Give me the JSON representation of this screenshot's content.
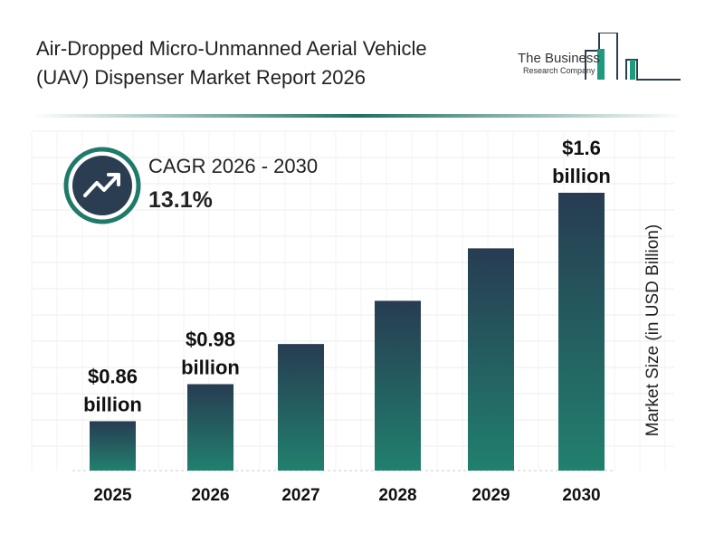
{
  "header": {
    "title_line1": "Air-Dropped Micro-Unmanned Aerial Vehicle",
    "title_line2": "(UAV) Dispenser Market Report 2026"
  },
  "logo": {
    "line1": "The Business",
    "line2": "Research Company"
  },
  "cagr": {
    "label": "CAGR 2026 - 2030",
    "value": "13.1%",
    "icon": "trending-up-icon"
  },
  "colors": {
    "bar_top": "#273c52",
    "bar_bottom": "#21806e",
    "accent": "#1f7a6a"
  },
  "chart_data": {
    "type": "bar",
    "categories": [
      "2025",
      "2026",
      "2027",
      "2028",
      "2029",
      "2030"
    ],
    "values": [
      0.86,
      0.98,
      1.11,
      1.25,
      1.42,
      1.6
    ],
    "data_labels": [
      [
        "$0.86",
        "billion"
      ],
      [
        "$0.98",
        "billion"
      ],
      null,
      null,
      null,
      [
        "$1.6",
        "billion"
      ]
    ],
    "xlabel": "",
    "ylabel": "Market Size (in USD Billion)",
    "grid": true
  }
}
